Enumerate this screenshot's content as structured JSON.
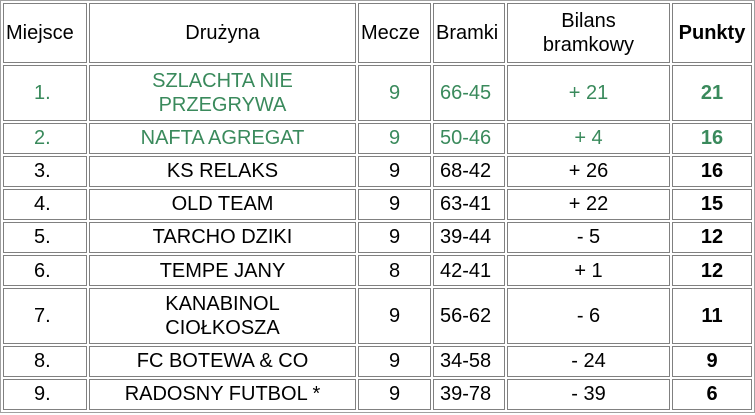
{
  "colors": {
    "highlight_row_text": "#3a8a5c",
    "border": "#808080"
  },
  "headers": {
    "place": "Miejsce",
    "team": "Drużyna",
    "matches": "Mecze",
    "goals": "Bramki",
    "diff_line1": "Bilans",
    "diff_line2": "bramkowy",
    "points": "Punkty"
  },
  "rows": [
    {
      "place": "1.",
      "team_line1": "SZLACHTA NIE",
      "team_line2": "PRZEGRYWA",
      "matches": "9",
      "goals": "66-45",
      "diff": "+ 21",
      "points": "21",
      "highlight": true
    },
    {
      "place": "2.",
      "team_line1": "NAFTA AGREGAT",
      "team_line2": "",
      "matches": "9",
      "goals": "50-46",
      "diff": "+ 4",
      "points": "16",
      "highlight": true
    },
    {
      "place": "3.",
      "team_line1": "KS RELAKS",
      "team_line2": "",
      "matches": "9",
      "goals": "68-42",
      "diff": "+ 26",
      "points": "16",
      "highlight": false
    },
    {
      "place": "4.",
      "team_line1": "OLD TEAM",
      "team_line2": "",
      "matches": "9",
      "goals": "63-41",
      "diff": "+ 22",
      "points": "15",
      "highlight": false
    },
    {
      "place": "5.",
      "team_line1": "TARCHO DZIKI",
      "team_line2": "",
      "matches": "9",
      "goals": "39-44",
      "diff": "- 5",
      "points": "12",
      "highlight": false
    },
    {
      "place": "6.",
      "team_line1": "TEMPE JANY",
      "team_line2": "",
      "matches": "8",
      "goals": "42-41",
      "diff": "+ 1",
      "points": "12",
      "highlight": false
    },
    {
      "place": "7.",
      "team_line1": "KANABINOL",
      "team_line2": "CIOŁKOSZA",
      "matches": "9",
      "goals": "56-62",
      "diff": "- 6",
      "points": "11",
      "highlight": false
    },
    {
      "place": "8.",
      "team_line1": "FC BOTEWA & CO",
      "team_line2": "",
      "matches": "9",
      "goals": "34-58",
      "diff": "- 24",
      "points": "9",
      "highlight": false
    },
    {
      "place": "9.",
      "team_line1": "RADOSNY FUTBOL *",
      "team_line2": "",
      "matches": "9",
      "goals": "39-78",
      "diff": "- 39",
      "points": "6",
      "highlight": false
    }
  ]
}
